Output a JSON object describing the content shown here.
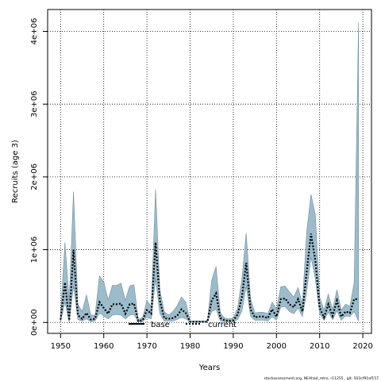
{
  "chart_data": {
    "type": "line",
    "xlabel": "Years",
    "ylabel": "Recruits (age 3)",
    "xlim": [
      1947,
      2022
    ],
    "ylim": [
      -150000,
      4300000
    ],
    "x_ticks": [
      1950,
      1960,
      1970,
      1980,
      1990,
      2000,
      2010,
      2020
    ],
    "y_ticks": [
      0,
      1000000,
      2000000,
      3000000,
      4000000
    ],
    "y_tick_labels": [
      "0e+00",
      "1e+06",
      "2e+06",
      "3e+06",
      "4e+06"
    ],
    "grid": true,
    "legend": {
      "position": "bottom-center",
      "entries": [
        {
          "name": "base",
          "style": "solid"
        },
        {
          "name": "current",
          "style": "dotted"
        }
      ]
    },
    "colors": {
      "band": "#9cbccc",
      "band_edge": "#6d8fa0",
      "current": "#000000",
      "base": "#000000"
    },
    "x": [
      1950,
      1951,
      1952,
      1953,
      1954,
      1955,
      1956,
      1957,
      1958,
      1959,
      1960,
      1961,
      1962,
      1963,
      1964,
      1965,
      1966,
      1967,
      1968,
      1969,
      1970,
      1971,
      1972,
      1973,
      1974,
      1975,
      1976,
      1977,
      1978,
      1979,
      1980,
      1981,
      1982,
      1983,
      1984,
      1985,
      1986,
      1987,
      1988,
      1989,
      1990,
      1991,
      1992,
      1993,
      1994,
      1995,
      1996,
      1997,
      1998,
      1999,
      2000,
      2001,
      2002,
      2003,
      2004,
      2005,
      2006,
      2007,
      2008,
      2009,
      2010,
      2011,
      2012,
      2013,
      2014,
      2015,
      2016,
      2017,
      2018,
      2019
    ],
    "series": [
      {
        "name": "current",
        "values": [
          40000,
          550000,
          30000,
          1000000,
          100000,
          50000,
          130000,
          40000,
          50000,
          280000,
          200000,
          120000,
          250000,
          250000,
          260000,
          120000,
          250000,
          260000,
          20000,
          30000,
          170000,
          120000,
          1100000,
          300000,
          60000,
          50000,
          60000,
          90000,
          180000,
          130000,
          10000,
          10000,
          10000,
          10000,
          10000,
          300000,
          400000,
          60000,
          30000,
          20000,
          30000,
          110000,
          350000,
          820000,
          180000,
          70000,
          80000,
          80000,
          60000,
          180000,
          80000,
          320000,
          330000,
          250000,
          210000,
          320000,
          150000,
          700000,
          1220000,
          850000,
          200000,
          70000,
          250000,
          90000,
          300000,
          80000,
          150000,
          130000,
          320000,
          320000
        ]
      },
      {
        "name": "band_upper",
        "values": [
          100000,
          1100000,
          300000,
          1800000,
          250000,
          150000,
          380000,
          100000,
          100000,
          640000,
          560000,
          310000,
          510000,
          510000,
          540000,
          300000,
          500000,
          520000,
          40000,
          70000,
          300000,
          220000,
          1830000,
          450000,
          150000,
          100000,
          150000,
          230000,
          350000,
          280000,
          20000,
          20000,
          20000,
          20000,
          20000,
          580000,
          770000,
          130000,
          60000,
          50000,
          60000,
          200000,
          600000,
          1230000,
          320000,
          130000,
          140000,
          140000,
          120000,
          280000,
          180000,
          490000,
          500000,
          420000,
          350000,
          480000,
          260000,
          1250000,
          1760000,
          1480000,
          350000,
          170000,
          390000,
          180000,
          450000,
          170000,
          250000,
          220000,
          550000,
          4120000
        ]
      },
      {
        "name": "band_lower",
        "values": [
          10000,
          280000,
          5000,
          500000,
          40000,
          20000,
          50000,
          10000,
          20000,
          130000,
          90000,
          50000,
          100000,
          110000,
          100000,
          50000,
          100000,
          110000,
          5000,
          10000,
          70000,
          50000,
          600000,
          120000,
          20000,
          20000,
          20000,
          40000,
          70000,
          50000,
          2000,
          2000,
          2000,
          2000,
          2000,
          150000,
          180000,
          20000,
          10000,
          5000,
          10000,
          40000,
          160000,
          500000,
          80000,
          30000,
          30000,
          30000,
          20000,
          80000,
          30000,
          210000,
          220000,
          150000,
          120000,
          200000,
          80000,
          420000,
          900000,
          600000,
          120000,
          30000,
          140000,
          40000,
          160000,
          30000,
          90000,
          80000,
          150000,
          20000
        ]
      }
    ]
  },
  "footnote": "stockassessment.org, NEAhad_retro, r11255 , git: 503cf91af157"
}
